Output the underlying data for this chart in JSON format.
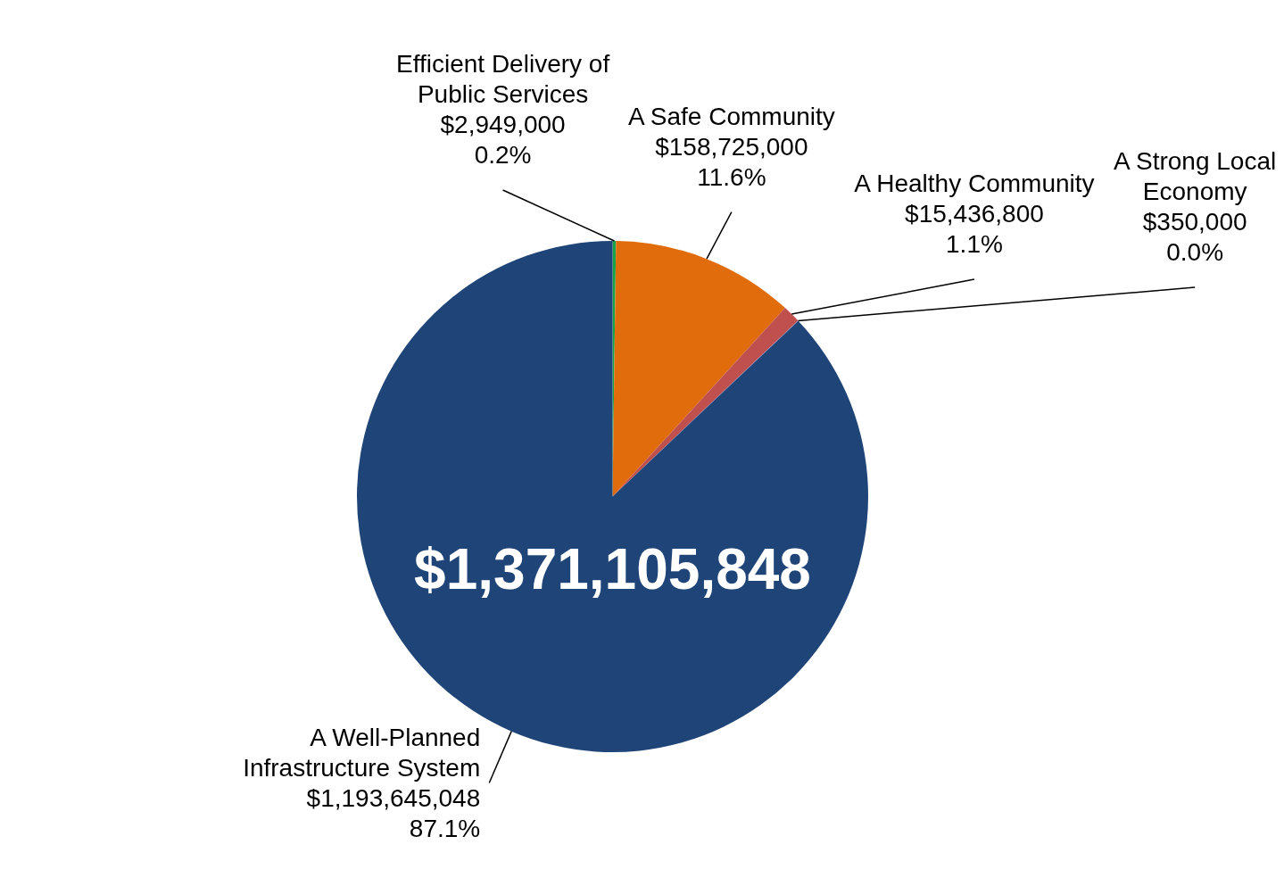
{
  "chart_data": {
    "type": "pie",
    "categories": [
      "Efficient Delivery of Public Services",
      "A Safe Community",
      "A Healthy Community",
      "A Strong Local Economy",
      "A Well-Planned Infrastructure System"
    ],
    "values": [
      2949000,
      158725000,
      15436800,
      350000,
      1193645048
    ],
    "colors": [
      "#1aa34a",
      "#e06c0b",
      "#c0504d",
      "#8064a2",
      "#1f4578"
    ],
    "value_labels": [
      "$2,949,000\n0.2%",
      "$158,725,000\n11.6%",
      "$15,436,800\n1.1%",
      "$350,000\n0.0%",
      "$1,193,645,048\n87.1%"
    ],
    "annotations": [
      "$1,371,105,848"
    ]
  }
}
